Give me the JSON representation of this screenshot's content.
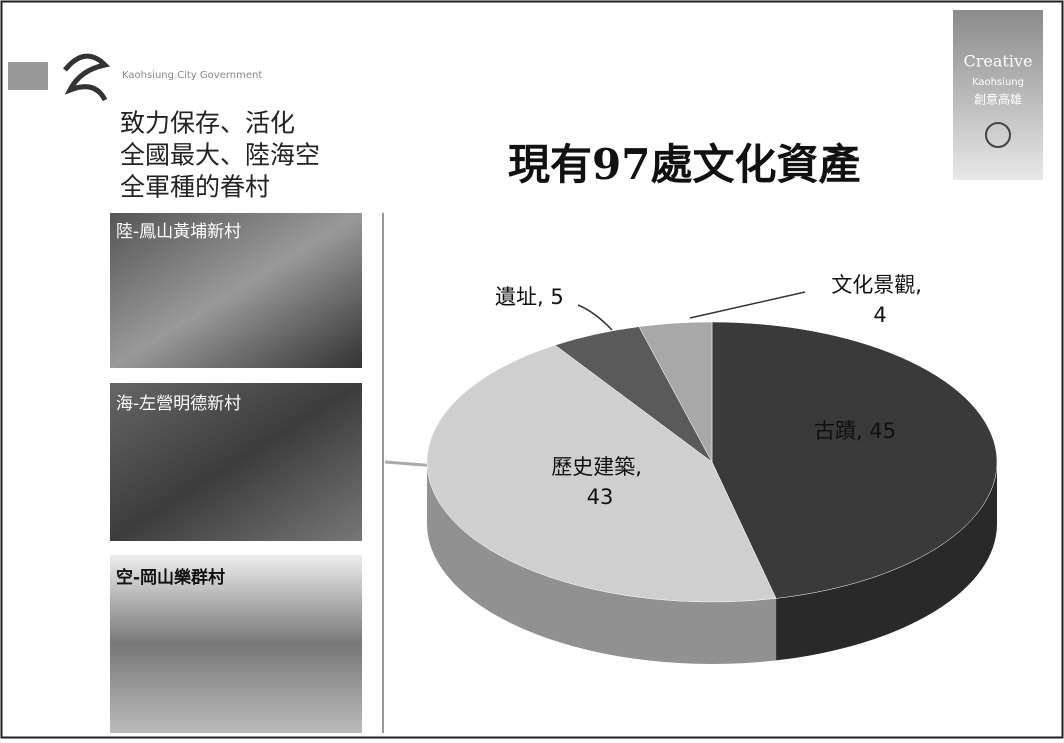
{
  "logo": {
    "text": "Kaohsiung City Government"
  },
  "badge": {
    "title": "Creative",
    "subtitle": "Kaohsiung",
    "chinese": "創意高雄"
  },
  "intro": [
    "致力保存、活化",
    "全國最大、陸海空",
    "全軍種的眷村"
  ],
  "photos": [
    "陸-鳳山黃埔新村",
    "海-左營明德新村",
    "空-岡山樂群村"
  ],
  "chart_data": {
    "type": "pie",
    "title": "現有97處文化資產",
    "values": [
      45,
      43,
      5,
      4
    ],
    "value_labels": [
      "古蹟, 45",
      "歷史建築, 43",
      "遺址, 5",
      "文化景觀, 4"
    ],
    "colors": [
      "#3a3a3a",
      "#cfcfcf",
      "#5a5a5a",
      "#a8a8a8"
    ]
  }
}
